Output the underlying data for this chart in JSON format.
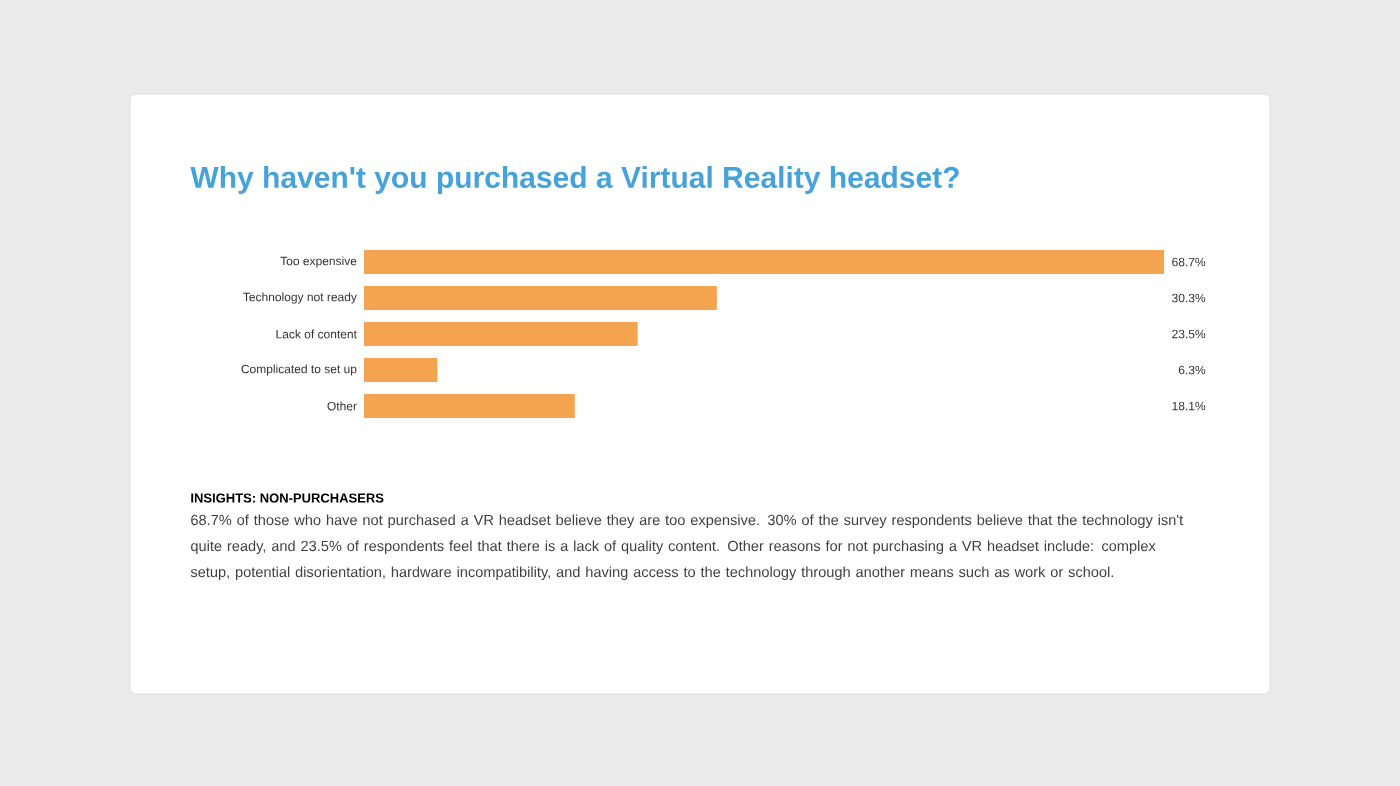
{
  "chart_data": {
    "type": "bar",
    "orientation": "horizontal",
    "title": "Why haven't you purchased a Virtual Reality headset?",
    "categories": [
      "Too expensive",
      "Technology not ready",
      "Lack of content",
      "Complicated to set up",
      "Other"
    ],
    "values": [
      68.7,
      30.3,
      23.5,
      6.3,
      18.1
    ],
    "value_labels": [
      "68.7%",
      "30.3%",
      "23.5%",
      "6.3%",
      "18.1%"
    ],
    "color": "#f4a44e",
    "annotations": [
      "INSIGHTS: NON-PURCHASERS",
      "68.7% of those who have not purchased a VR headset believe they are too expensive. 30% of the survey respondents believe that the technology isn't quite ready, and 23.5% of respondents feel that there is a lack of quality content. Other reasons for not purchasing a VR headset include: complex setup, potential disorientation, hardware incompatibility, and having access to the technology through another means such as work or school."
    ]
  }
}
